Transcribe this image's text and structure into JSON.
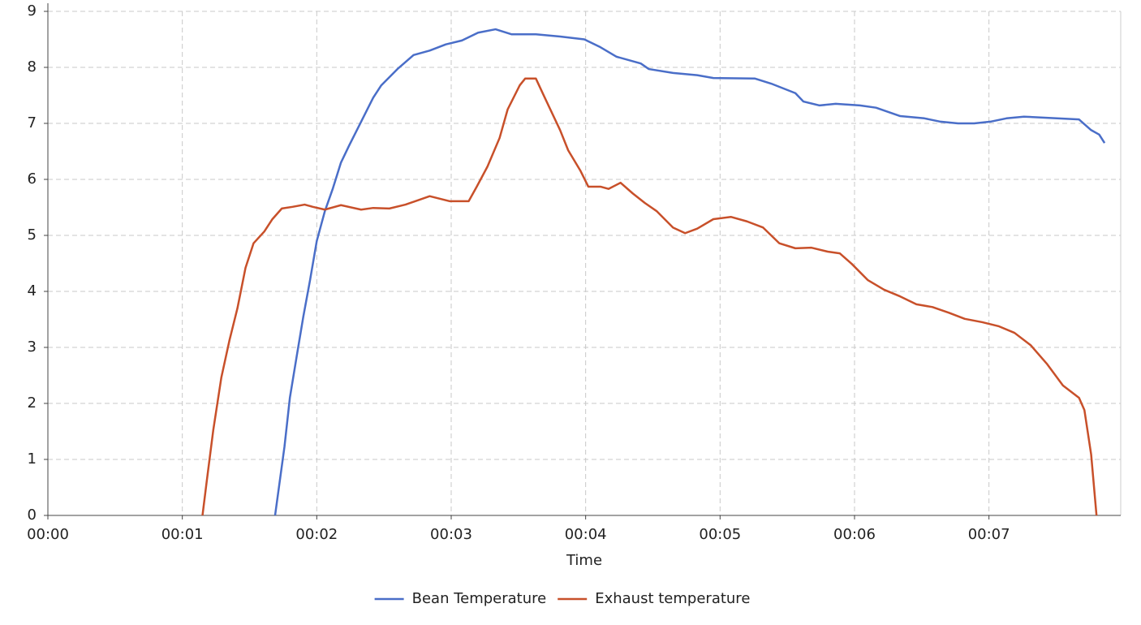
{
  "chart_data": {
    "type": "line",
    "x_label": "Time",
    "legend": "bottom",
    "grid": true,
    "xlim": [
      0,
      7.98
    ],
    "ylim": [
      0,
      9
    ],
    "xticks": [
      {
        "value": 0,
        "label": "00:00"
      },
      {
        "value": 1,
        "label": "00:01"
      },
      {
        "value": 2,
        "label": "00:02"
      },
      {
        "value": 3,
        "label": "00:03"
      },
      {
        "value": 4,
        "label": "00:04"
      },
      {
        "value": 5,
        "label": "00:05"
      },
      {
        "value": 6,
        "label": "00:06"
      },
      {
        "value": 7,
        "label": "00:07"
      }
    ],
    "yticks": [
      0,
      1,
      2,
      3,
      4,
      5,
      6,
      7,
      8,
      9
    ],
    "series": [
      {
        "name": "Bean Temperature",
        "color": "#4a6ec8",
        "x": [
          1.69,
          1.76,
          1.8,
          1.85,
          1.9,
          1.95,
          2.0,
          2.06,
          2.12,
          2.18,
          2.24,
          2.33,
          2.42,
          2.48,
          2.6,
          2.72,
          2.84,
          2.96,
          3.08,
          3.2,
          3.33,
          3.45,
          3.63,
          3.81,
          3.99,
          4.11,
          4.23,
          4.41,
          4.47,
          4.65,
          4.83,
          4.95,
          5.26,
          5.38,
          5.56,
          5.62,
          5.74,
          5.86,
          6.04,
          6.16,
          6.34,
          6.52,
          6.64,
          6.77,
          6.89,
          7.01,
          7.13,
          7.26,
          7.43,
          7.67,
          7.76,
          7.82,
          7.86
        ],
        "values": [
          0,
          1.23,
          2.1,
          2.83,
          3.55,
          4.2,
          4.9,
          5.43,
          5.84,
          6.3,
          6.6,
          7.03,
          7.46,
          7.68,
          7.97,
          8.22,
          8.3,
          8.41,
          8.48,
          8.62,
          8.68,
          8.59,
          8.59,
          8.55,
          8.5,
          8.36,
          8.19,
          8.07,
          7.97,
          7.9,
          7.86,
          7.81,
          7.8,
          7.71,
          7.54,
          7.39,
          7.32,
          7.35,
          7.32,
          7.28,
          7.13,
          7.09,
          7.03,
          7.0,
          7.0,
          7.03,
          7.09,
          7.12,
          7.1,
          7.07,
          6.88,
          6.8,
          6.65
        ]
      },
      {
        "name": "Exhaust temperature",
        "color": "#c8502a",
        "x": [
          1.15,
          1.18,
          1.23,
          1.29,
          1.35,
          1.41,
          1.47,
          1.53,
          1.61,
          1.67,
          1.74,
          1.82,
          1.91,
          1.97,
          2.06,
          2.18,
          2.33,
          2.42,
          2.54,
          2.66,
          2.84,
          2.99,
          3.13,
          3.19,
          3.27,
          3.36,
          3.42,
          3.51,
          3.55,
          3.63,
          3.69,
          3.81,
          3.87,
          3.96,
          4.02,
          4.11,
          4.17,
          4.26,
          4.35,
          4.44,
          4.53,
          4.65,
          4.74,
          4.83,
          4.95,
          5.08,
          5.2,
          5.32,
          5.44,
          5.56,
          5.68,
          5.8,
          5.89,
          5.98,
          6.1,
          6.22,
          6.34,
          6.46,
          6.58,
          6.7,
          6.82,
          6.95,
          7.07,
          7.19,
          7.31,
          7.43,
          7.55,
          7.67,
          7.71,
          7.76,
          7.8
        ],
        "values": [
          0,
          0.58,
          1.52,
          2.46,
          3.12,
          3.7,
          4.42,
          4.86,
          5.07,
          5.29,
          5.48,
          5.51,
          5.55,
          5.51,
          5.46,
          5.54,
          5.46,
          5.49,
          5.48,
          5.55,
          5.7,
          5.61,
          5.61,
          5.87,
          6.23,
          6.74,
          7.25,
          7.68,
          7.8,
          7.8,
          7.49,
          6.88,
          6.52,
          6.16,
          5.87,
          5.87,
          5.83,
          5.94,
          5.75,
          5.58,
          5.43,
          5.14,
          5.04,
          5.12,
          5.29,
          5.33,
          5.25,
          5.14,
          4.86,
          4.77,
          4.78,
          4.71,
          4.68,
          4.49,
          4.2,
          4.03,
          3.91,
          3.77,
          3.72,
          3.62,
          3.51,
          3.45,
          3.38,
          3.26,
          3.04,
          2.71,
          2.32,
          2.1,
          1.88,
          1.09,
          0
        ]
      }
    ]
  }
}
